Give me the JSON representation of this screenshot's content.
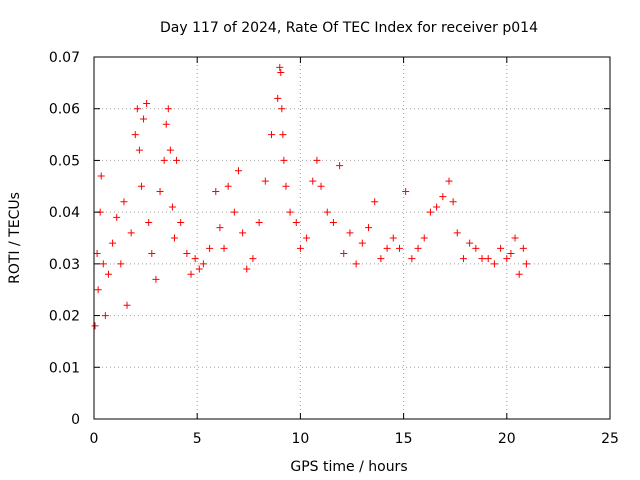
{
  "chart_data": {
    "type": "scatter",
    "title": "Day 117 of 2024, Rate Of TEC Index for receiver p014",
    "xlabel": "GPS time / hours",
    "ylabel": "ROTI / TECUs",
    "xlim": [
      0,
      25
    ],
    "ylim": [
      0,
      0.07
    ],
    "xticks": [
      0,
      5,
      10,
      15,
      20,
      25
    ],
    "xtick_labels": [
      "0",
      "5",
      "10",
      "15",
      "20",
      "25"
    ],
    "yticks": [
      0,
      0.01,
      0.02,
      0.03,
      0.04,
      0.05,
      0.06,
      0.07
    ],
    "ytick_labels": [
      "0",
      "0.01",
      "0.02",
      "0.03",
      "0.04",
      "0.05",
      "0.06",
      "0.07"
    ],
    "grid": true,
    "marker": "+",
    "color": "#ff0000",
    "series": [
      {
        "name": "ROTI",
        "x": [
          0.05,
          0.15,
          0.2,
          0.3,
          0.35,
          0.45,
          0.55,
          0.7,
          0.9,
          1.1,
          1.3,
          1.45,
          1.6,
          1.8,
          2.0,
          2.1,
          2.2,
          2.3,
          2.4,
          2.55,
          2.65,
          2.8,
          3.0,
          3.2,
          3.4,
          3.5,
          3.6,
          3.7,
          3.8,
          3.9,
          4.0,
          4.2,
          4.5,
          4.7,
          4.9,
          5.1,
          5.3,
          5.6,
          5.9,
          6.1,
          6.3,
          6.5,
          6.8,
          7.0,
          7.2,
          7.4,
          7.7,
          8.0,
          8.3,
          8.6,
          8.9,
          9.0,
          9.05,
          9.1,
          9.15,
          9.2,
          9.3,
          9.5,
          9.8,
          10.0,
          10.3,
          10.6,
          10.8,
          11.0,
          11.3,
          11.6,
          11.9,
          12.1,
          12.4,
          12.7,
          13.0,
          13.3,
          13.6,
          13.9,
          14.2,
          14.5,
          14.8,
          15.1,
          15.4,
          15.7,
          16.0,
          16.3,
          16.6,
          16.9,
          17.2,
          17.4,
          17.6,
          17.9,
          18.2,
          18.5,
          18.8,
          19.1,
          19.4,
          19.7,
          20.0,
          20.2,
          20.4,
          20.6,
          20.8,
          20.95
        ],
        "y": [
          0.018,
          0.032,
          0.025,
          0.04,
          0.047,
          0.03,
          0.02,
          0.028,
          0.034,
          0.039,
          0.03,
          0.042,
          0.022,
          0.036,
          0.055,
          0.06,
          0.052,
          0.045,
          0.058,
          0.061,
          0.038,
          0.032,
          0.027,
          0.044,
          0.05,
          0.057,
          0.06,
          0.052,
          0.041,
          0.035,
          0.05,
          0.038,
          0.032,
          0.028,
          0.031,
          0.029,
          0.03,
          0.033,
          0.044,
          0.037,
          0.033,
          0.045,
          0.04,
          0.048,
          0.036,
          0.029,
          0.031,
          0.038,
          0.046,
          0.055,
          0.062,
          0.068,
          0.067,
          0.06,
          0.055,
          0.05,
          0.045,
          0.04,
          0.038,
          0.033,
          0.035,
          0.046,
          0.05,
          0.045,
          0.04,
          0.038,
          0.049,
          0.032,
          0.036,
          0.03,
          0.034,
          0.037,
          0.042,
          0.031,
          0.033,
          0.035,
          0.033,
          0.044,
          0.031,
          0.033,
          0.035,
          0.04,
          0.041,
          0.043,
          0.046,
          0.042,
          0.036,
          0.031,
          0.034,
          0.033,
          0.031,
          0.031,
          0.03,
          0.033,
          0.031,
          0.032,
          0.035,
          0.028,
          0.033,
          0.03
        ]
      }
    ]
  }
}
